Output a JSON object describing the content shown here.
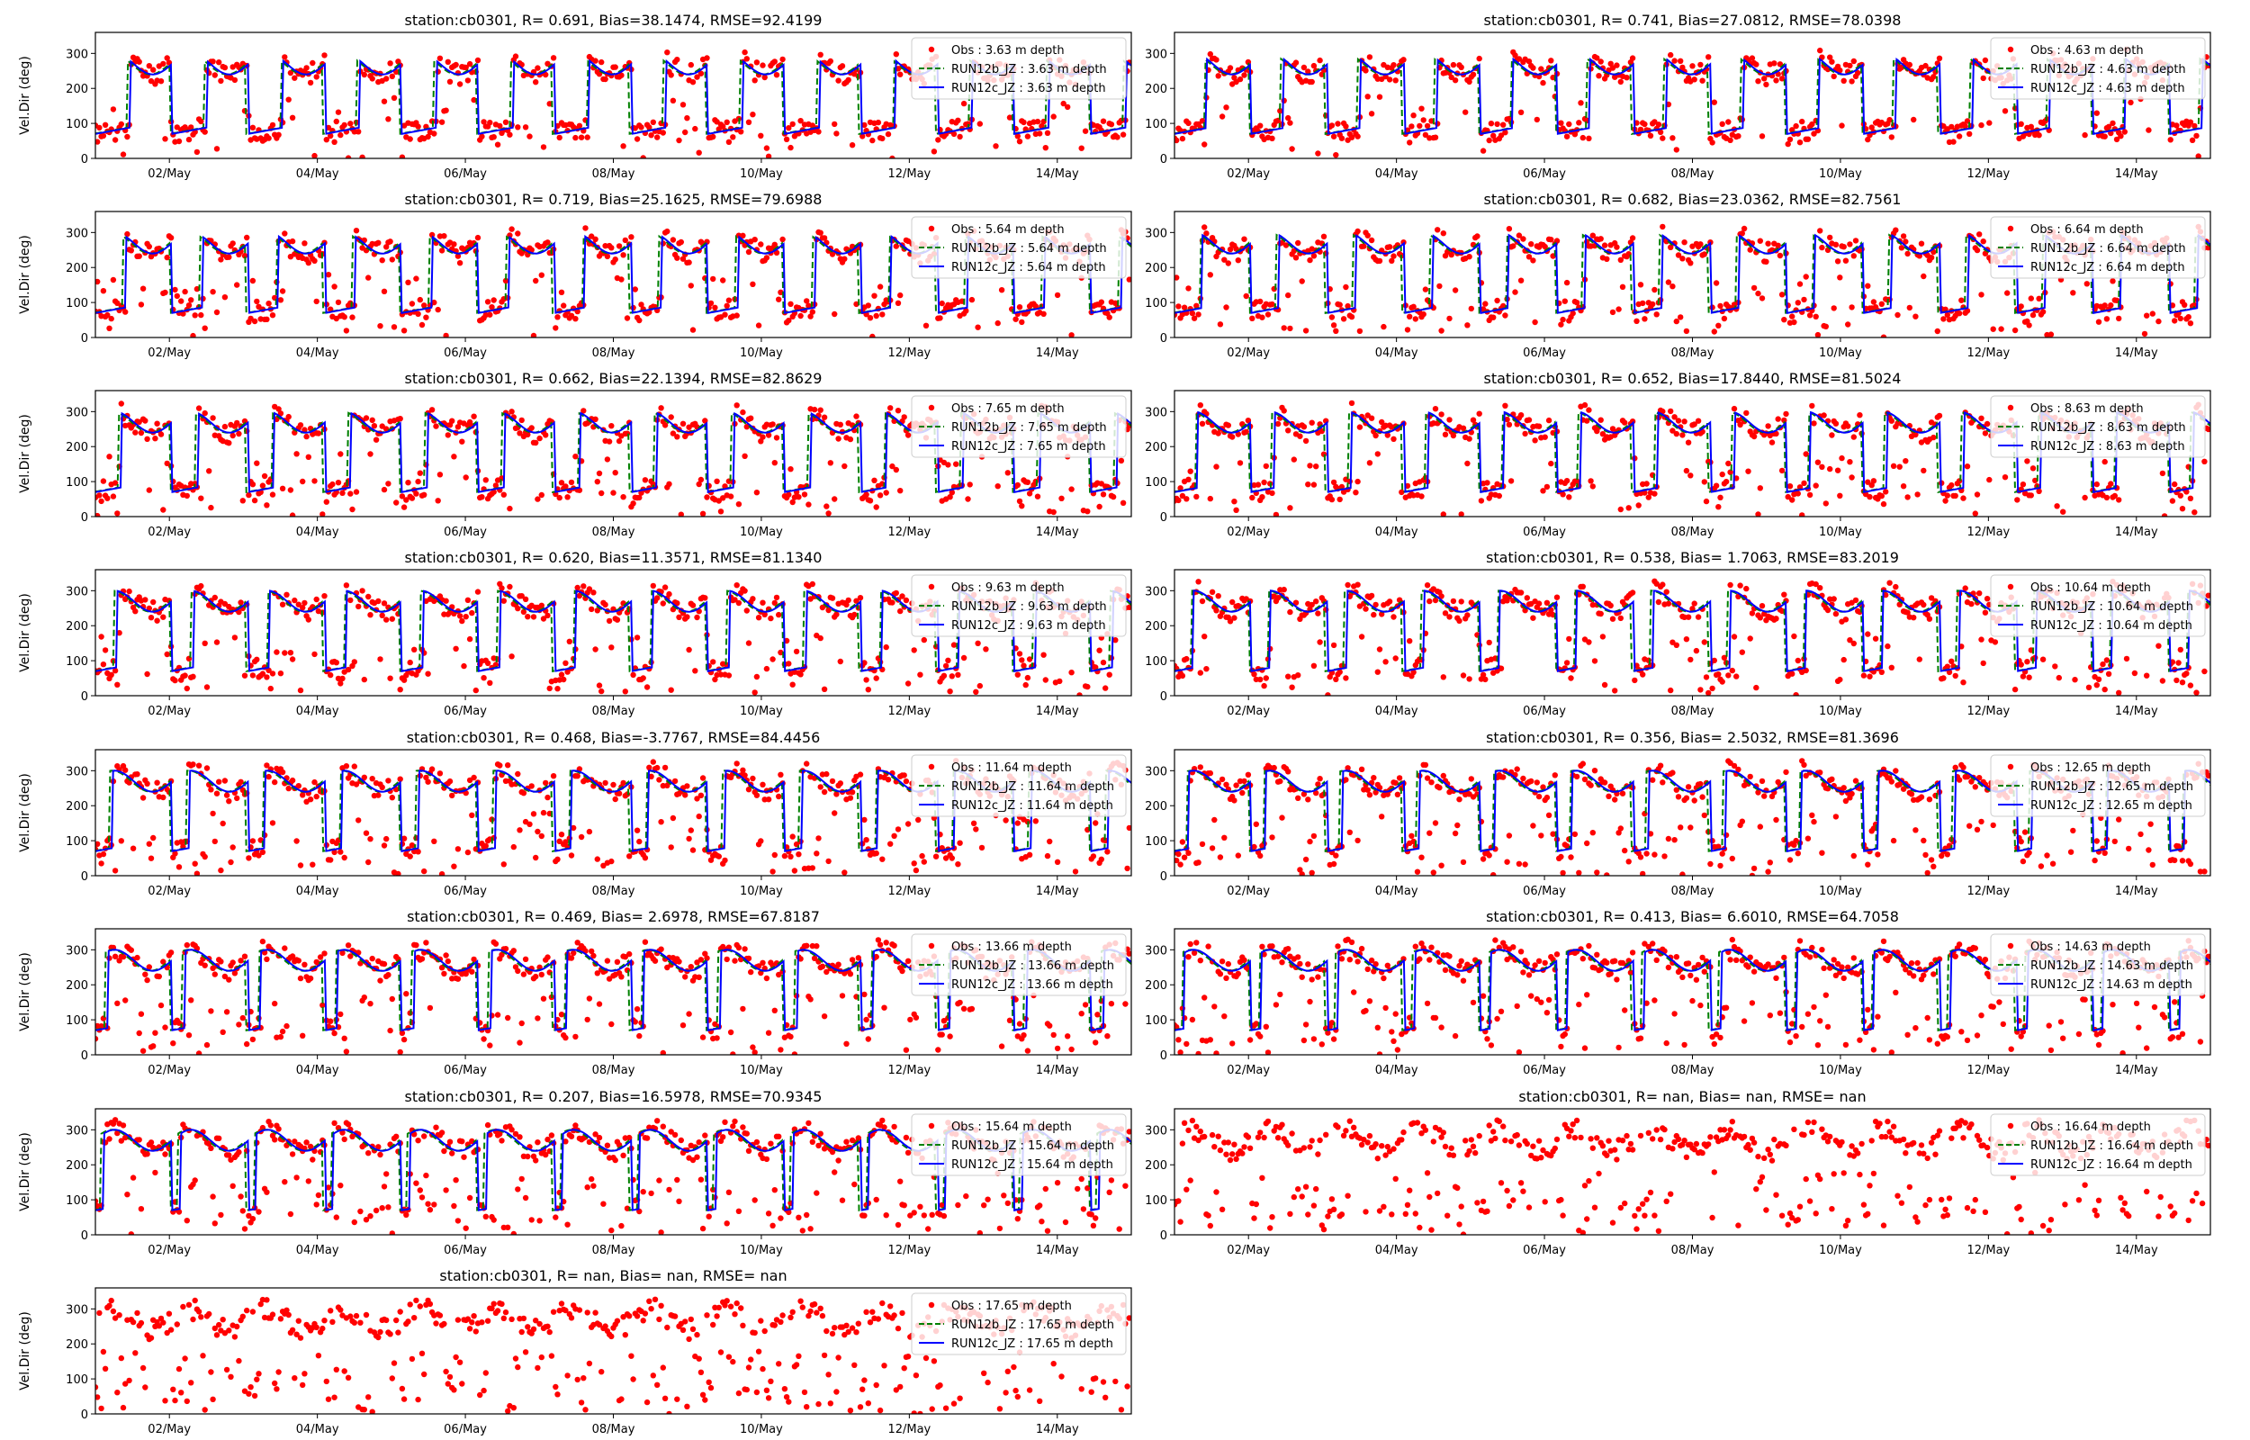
{
  "figure": {
    "colors": {
      "obs": "#ff0000",
      "run12b": "#008000",
      "run12c": "#0000ff",
      "axis": "#000000"
    }
  },
  "chart_data": [
    {
      "type": "scatter",
      "title": "station:cb0301, R= 0.691, Bias=38.1474, RMSE=92.4199",
      "xlabel": "",
      "ylabel": "Vel.Dir (deg)",
      "x_tick_labels": [
        "02/May",
        "04/May",
        "06/May",
        "08/May",
        "10/May",
        "12/May",
        "14/May"
      ],
      "y_ticks": [
        0,
        100,
        200,
        300
      ],
      "ylim": [
        0,
        360
      ],
      "xlim": [
        "2023-05-01",
        "2023-05-15"
      ],
      "grid": false,
      "legend_position": "top-right",
      "series": [
        {
          "name": "Obs : 3.63 m depth",
          "style": "dots"
        },
        {
          "name": "RUN12b_JZ : 3.63 m depth",
          "style": "dashed"
        },
        {
          "name": "RUN12c_JZ : 3.63 m depth",
          "style": "line"
        }
      ]
    },
    {
      "type": "scatter",
      "title": "station:cb0301, R= 0.741, Bias=27.0812, RMSE=78.0398",
      "xlabel": "",
      "ylabel": "",
      "x_tick_labels": [
        "02/May",
        "04/May",
        "06/May",
        "08/May",
        "10/May",
        "12/May",
        "14/May"
      ],
      "y_ticks": [
        0,
        100,
        200,
        300
      ],
      "ylim": [
        0,
        360
      ],
      "xlim": [
        "2023-05-01",
        "2023-05-15"
      ],
      "grid": false,
      "legend_position": "top-right",
      "series": [
        {
          "name": "Obs : 4.63 m depth",
          "style": "dots"
        },
        {
          "name": "RUN12b_JZ : 4.63 m depth",
          "style": "dashed"
        },
        {
          "name": "RUN12c_JZ : 4.63 m depth",
          "style": "line"
        }
      ]
    },
    {
      "type": "scatter",
      "title": "station:cb0301, R= 0.719, Bias=25.1625, RMSE=79.6988",
      "xlabel": "",
      "ylabel": "Vel.Dir (deg)",
      "x_tick_labels": [
        "02/May",
        "04/May",
        "06/May",
        "08/May",
        "10/May",
        "12/May",
        "14/May"
      ],
      "y_ticks": [
        0,
        100,
        200,
        300
      ],
      "ylim": [
        0,
        360
      ],
      "xlim": [
        "2023-05-01",
        "2023-05-15"
      ],
      "grid": false,
      "legend_position": "top-right",
      "series": [
        {
          "name": "Obs : 5.64 m depth",
          "style": "dots"
        },
        {
          "name": "RUN12b_JZ : 5.64 m depth",
          "style": "dashed"
        },
        {
          "name": "RUN12c_JZ : 5.64 m depth",
          "style": "line"
        }
      ]
    },
    {
      "type": "scatter",
      "title": "station:cb0301, R= 0.682, Bias=23.0362, RMSE=82.7561",
      "xlabel": "",
      "ylabel": "",
      "x_tick_labels": [
        "02/May",
        "04/May",
        "06/May",
        "08/May",
        "10/May",
        "12/May",
        "14/May"
      ],
      "y_ticks": [
        0,
        100,
        200,
        300
      ],
      "ylim": [
        0,
        360
      ],
      "xlim": [
        "2023-05-01",
        "2023-05-15"
      ],
      "grid": false,
      "legend_position": "top-right",
      "series": [
        {
          "name": "Obs : 6.64 m depth",
          "style": "dots"
        },
        {
          "name": "RUN12b_JZ : 6.64 m depth",
          "style": "dashed"
        },
        {
          "name": "RUN12c_JZ : 6.64 m depth",
          "style": "line"
        }
      ]
    },
    {
      "type": "scatter",
      "title": "station:cb0301, R= 0.662, Bias=22.1394, RMSE=82.8629",
      "xlabel": "",
      "ylabel": "Vel.Dir (deg)",
      "x_tick_labels": [
        "02/May",
        "04/May",
        "06/May",
        "08/May",
        "10/May",
        "12/May",
        "14/May"
      ],
      "y_ticks": [
        0,
        100,
        200,
        300
      ],
      "ylim": [
        0,
        360
      ],
      "xlim": [
        "2023-05-01",
        "2023-05-15"
      ],
      "grid": false,
      "legend_position": "top-right",
      "series": [
        {
          "name": "Obs : 7.65 m depth",
          "style": "dots"
        },
        {
          "name": "RUN12b_JZ : 7.65 m depth",
          "style": "dashed"
        },
        {
          "name": "RUN12c_JZ : 7.65 m depth",
          "style": "line"
        }
      ]
    },
    {
      "type": "scatter",
      "title": "station:cb0301, R= 0.652, Bias=17.8440, RMSE=81.5024",
      "xlabel": "",
      "ylabel": "",
      "x_tick_labels": [
        "02/May",
        "04/May",
        "06/May",
        "08/May",
        "10/May",
        "12/May",
        "14/May"
      ],
      "y_ticks": [
        0,
        100,
        200,
        300
      ],
      "ylim": [
        0,
        360
      ],
      "xlim": [
        "2023-05-01",
        "2023-05-15"
      ],
      "grid": false,
      "legend_position": "top-right",
      "series": [
        {
          "name": "Obs : 8.63 m depth",
          "style": "dots"
        },
        {
          "name": "RUN12b_JZ : 8.63 m depth",
          "style": "dashed"
        },
        {
          "name": "RUN12c_JZ : 8.63 m depth",
          "style": "line"
        }
      ]
    },
    {
      "type": "scatter",
      "title": "station:cb0301, R= 0.620, Bias=11.3571, RMSE=81.1340",
      "xlabel": "",
      "ylabel": "Vel.Dir (deg)",
      "x_tick_labels": [
        "02/May",
        "04/May",
        "06/May",
        "08/May",
        "10/May",
        "12/May",
        "14/May"
      ],
      "y_ticks": [
        0,
        100,
        200,
        300
      ],
      "ylim": [
        0,
        360
      ],
      "xlim": [
        "2023-05-01",
        "2023-05-15"
      ],
      "grid": false,
      "legend_position": "top-right",
      "series": [
        {
          "name": "Obs : 9.63 m depth",
          "style": "dots"
        },
        {
          "name": "RUN12b_JZ : 9.63 m depth",
          "style": "dashed"
        },
        {
          "name": "RUN12c_JZ : 9.63 m depth",
          "style": "line"
        }
      ]
    },
    {
      "type": "scatter",
      "title": "station:cb0301, R= 0.538, Bias= 1.7063, RMSE=83.2019",
      "xlabel": "",
      "ylabel": "",
      "x_tick_labels": [
        "02/May",
        "04/May",
        "06/May",
        "08/May",
        "10/May",
        "12/May",
        "14/May"
      ],
      "y_ticks": [
        0,
        100,
        200,
        300
      ],
      "ylim": [
        0,
        360
      ],
      "xlim": [
        "2023-05-01",
        "2023-05-15"
      ],
      "grid": false,
      "legend_position": "top-right",
      "series": [
        {
          "name": "Obs : 10.64 m depth",
          "style": "dots"
        },
        {
          "name": "RUN12b_JZ : 10.64 m depth",
          "style": "dashed"
        },
        {
          "name": "RUN12c_JZ : 10.64 m depth",
          "style": "line"
        }
      ]
    },
    {
      "type": "scatter",
      "title": "station:cb0301, R= 0.468, Bias=-3.7767, RMSE=84.4456",
      "xlabel": "",
      "ylabel": "Vel.Dir (deg)",
      "x_tick_labels": [
        "02/May",
        "04/May",
        "06/May",
        "08/May",
        "10/May",
        "12/May",
        "14/May"
      ],
      "y_ticks": [
        0,
        100,
        200,
        300
      ],
      "ylim": [
        0,
        360
      ],
      "xlim": [
        "2023-05-01",
        "2023-05-15"
      ],
      "grid": false,
      "legend_position": "top-right",
      "series": [
        {
          "name": "Obs : 11.64 m depth",
          "style": "dots"
        },
        {
          "name": "RUN12b_JZ : 11.64 m depth",
          "style": "dashed"
        },
        {
          "name": "RUN12c_JZ : 11.64 m depth",
          "style": "line"
        }
      ]
    },
    {
      "type": "scatter",
      "title": "station:cb0301, R= 0.356, Bias= 2.5032, RMSE=81.3696",
      "xlabel": "",
      "ylabel": "",
      "x_tick_labels": [
        "02/May",
        "04/May",
        "06/May",
        "08/May",
        "10/May",
        "12/May",
        "14/May"
      ],
      "y_ticks": [
        0,
        100,
        200,
        300
      ],
      "ylim": [
        0,
        360
      ],
      "xlim": [
        "2023-05-01",
        "2023-05-15"
      ],
      "grid": false,
      "legend_position": "top-right",
      "series": [
        {
          "name": "Obs : 12.65 m depth",
          "style": "dots"
        },
        {
          "name": "RUN12b_JZ : 12.65 m depth",
          "style": "dashed"
        },
        {
          "name": "RUN12c_JZ : 12.65 m depth",
          "style": "line"
        }
      ]
    },
    {
      "type": "scatter",
      "title": "station:cb0301, R= 0.469, Bias= 2.6978, RMSE=67.8187",
      "xlabel": "",
      "ylabel": "Vel.Dir (deg)",
      "x_tick_labels": [
        "02/May",
        "04/May",
        "06/May",
        "08/May",
        "10/May",
        "12/May",
        "14/May"
      ],
      "y_ticks": [
        0,
        100,
        200,
        300
      ],
      "ylim": [
        0,
        360
      ],
      "xlim": [
        "2023-05-01",
        "2023-05-15"
      ],
      "grid": false,
      "legend_position": "top-right",
      "series": [
        {
          "name": "Obs : 13.66 m depth",
          "style": "dots"
        },
        {
          "name": "RUN12b_JZ : 13.66 m depth",
          "style": "dashed"
        },
        {
          "name": "RUN12c_JZ : 13.66 m depth",
          "style": "line"
        }
      ]
    },
    {
      "type": "scatter",
      "title": "station:cb0301, R= 0.413, Bias= 6.6010, RMSE=64.7058",
      "xlabel": "",
      "ylabel": "",
      "x_tick_labels": [
        "02/May",
        "04/May",
        "06/May",
        "08/May",
        "10/May",
        "12/May",
        "14/May"
      ],
      "y_ticks": [
        0,
        100,
        200,
        300
      ],
      "ylim": [
        0,
        360
      ],
      "xlim": [
        "2023-05-01",
        "2023-05-15"
      ],
      "grid": false,
      "legend_position": "top-right",
      "series": [
        {
          "name": "Obs : 14.63 m depth",
          "style": "dots"
        },
        {
          "name": "RUN12b_JZ : 14.63 m depth",
          "style": "dashed"
        },
        {
          "name": "RUN12c_JZ : 14.63 m depth",
          "style": "line"
        }
      ]
    },
    {
      "type": "scatter",
      "title": "station:cb0301, R= 0.207, Bias=16.5978, RMSE=70.9345",
      "xlabel": "",
      "ylabel": "Vel.Dir (deg)",
      "x_tick_labels": [
        "02/May",
        "04/May",
        "06/May",
        "08/May",
        "10/May",
        "12/May",
        "14/May"
      ],
      "y_ticks": [
        0,
        100,
        200,
        300
      ],
      "ylim": [
        0,
        360
      ],
      "xlim": [
        "2023-05-01",
        "2023-05-15"
      ],
      "grid": false,
      "legend_position": "top-right",
      "series": [
        {
          "name": "Obs : 15.64 m depth",
          "style": "dots"
        },
        {
          "name": "RUN12b_JZ : 15.64 m depth",
          "style": "dashed"
        },
        {
          "name": "RUN12c_JZ : 15.64 m depth",
          "style": "line"
        }
      ]
    },
    {
      "type": "scatter",
      "title": "station:cb0301, R=   nan, Bias=    nan, RMSE=    nan",
      "xlabel": "",
      "ylabel": "",
      "x_tick_labels": [
        "02/May",
        "04/May",
        "06/May",
        "08/May",
        "10/May",
        "12/May",
        "14/May"
      ],
      "y_ticks": [
        0,
        100,
        200,
        300
      ],
      "ylim": [
        0,
        360
      ],
      "xlim": [
        "2023-05-01",
        "2023-05-15"
      ],
      "grid": false,
      "legend_position": "top-right",
      "series": [
        {
          "name": "Obs : 16.64 m depth",
          "style": "dots"
        },
        {
          "name": "RUN12b_JZ : 16.64 m depth",
          "style": "dashed"
        },
        {
          "name": "RUN12c_JZ : 16.64 m depth",
          "style": "line"
        }
      ]
    },
    {
      "type": "scatter",
      "title": "station:cb0301, R=   nan, Bias=    nan, RMSE=    nan",
      "xlabel": "",
      "ylabel": "Vel.Dir (deg)",
      "x_tick_labels": [
        "02/May",
        "04/May",
        "06/May",
        "08/May",
        "10/May",
        "12/May",
        "14/May"
      ],
      "y_ticks": [
        0,
        100,
        200,
        300
      ],
      "ylim": [
        0,
        360
      ],
      "xlim": [
        "2023-05-01",
        "2023-05-15"
      ],
      "grid": false,
      "legend_position": "top-right",
      "series": [
        {
          "name": "Obs : 17.65 m depth",
          "style": "dots"
        },
        {
          "name": "RUN12b_JZ : 17.65 m depth",
          "style": "dashed"
        },
        {
          "name": "RUN12c_JZ : 17.65 m depth",
          "style": "line"
        }
      ]
    }
  ]
}
